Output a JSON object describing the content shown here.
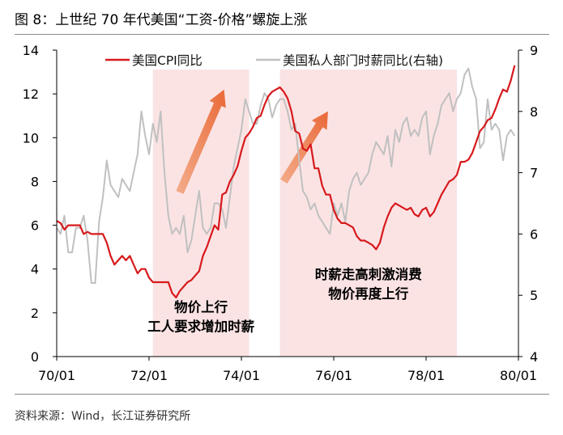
{
  "figure": {
    "title": "图 8：上世纪 70 年代美国“工资-价格”螺旋上涨",
    "source": "资料来源：Wind，长江证券研究所"
  },
  "chart_data": {
    "type": "line",
    "title": "上世纪 70 年代美国“工资-价格”螺旋上涨",
    "x_ticks": [
      "70/01",
      "72/01",
      "74/01",
      "76/01",
      "78/01",
      "80/01"
    ],
    "x_range_months": [
      0,
      120
    ],
    "y_left": {
      "label": "美国CPI同比",
      "range": [
        0,
        14
      ],
      "ticks": [
        0,
        2,
        4,
        6,
        8,
        10,
        12,
        14
      ]
    },
    "y_right": {
      "label": "美国私人部门时薪同比(右轴)",
      "range": [
        4,
        9
      ],
      "ticks": [
        4,
        5,
        6,
        7,
        8,
        9
      ]
    },
    "legend_position": "top",
    "series": [
      {
        "name": "美国CPI同比",
        "axis": "left",
        "color": "#d7191c",
        "points": [
          [
            0,
            6.2
          ],
          [
            1,
            6.1
          ],
          [
            2,
            5.8
          ],
          [
            3,
            6.0
          ],
          [
            4,
            6.0
          ],
          [
            5,
            6.0
          ],
          [
            6,
            6.0
          ],
          [
            7,
            5.6
          ],
          [
            8,
            5.7
          ],
          [
            9,
            5.6
          ],
          [
            10,
            5.6
          ],
          [
            11,
            5.6
          ],
          [
            12,
            5.6
          ],
          [
            13,
            5.2
          ],
          [
            14,
            4.6
          ],
          [
            15,
            4.2
          ],
          [
            16,
            4.4
          ],
          [
            17,
            4.6
          ],
          [
            18,
            4.4
          ],
          [
            19,
            4.6
          ],
          [
            20,
            4.2
          ],
          [
            21,
            3.8
          ],
          [
            22,
            4.0
          ],
          [
            23,
            4.0
          ],
          [
            24,
            3.6
          ],
          [
            25,
            3.4
          ],
          [
            26,
            3.4
          ],
          [
            27,
            3.4
          ],
          [
            28,
            3.4
          ],
          [
            29,
            3.4
          ],
          [
            30,
            2.9
          ],
          [
            31,
            2.7
          ],
          [
            32,
            3.0
          ],
          [
            33,
            3.2
          ],
          [
            34,
            3.4
          ],
          [
            35,
            3.5
          ],
          [
            36,
            3.7
          ],
          [
            37,
            3.9
          ],
          [
            38,
            4.6
          ],
          [
            39,
            5.0
          ],
          [
            40,
            5.5
          ],
          [
            41,
            6.0
          ],
          [
            42,
            5.8
          ],
          [
            43,
            7.4
          ],
          [
            44,
            7.5
          ],
          [
            45,
            8.0
          ],
          [
            46,
            8.3
          ],
          [
            47,
            8.7
          ],
          [
            48,
            9.4
          ],
          [
            49,
            10.0
          ],
          [
            50,
            10.2
          ],
          [
            51,
            10.5
          ],
          [
            52,
            10.9
          ],
          [
            53,
            11.0
          ],
          [
            54,
            11.5
          ],
          [
            55,
            11.9
          ],
          [
            56,
            12.1
          ],
          [
            57,
            12.2
          ],
          [
            58,
            12.3
          ],
          [
            59,
            12.1
          ],
          [
            60,
            11.8
          ],
          [
            61,
            11.2
          ],
          [
            62,
            10.3
          ],
          [
            63,
            10.2
          ],
          [
            64,
            9.5
          ],
          [
            65,
            9.4
          ],
          [
            66,
            9.7
          ],
          [
            67,
            8.6
          ],
          [
            68,
            8.6
          ],
          [
            69,
            7.8
          ],
          [
            70,
            7.4
          ],
          [
            71,
            7.4
          ],
          [
            72,
            6.7
          ],
          [
            73,
            6.3
          ],
          [
            74,
            6.1
          ],
          [
            75,
            6.1
          ],
          [
            76,
            6.0
          ],
          [
            77,
            5.9
          ],
          [
            78,
            5.5
          ],
          [
            79,
            5.3
          ],
          [
            80,
            5.3
          ],
          [
            81,
            5.2
          ],
          [
            82,
            5.1
          ],
          [
            83,
            4.9
          ],
          [
            84,
            5.2
          ],
          [
            85,
            5.9
          ],
          [
            86,
            6.4
          ],
          [
            87,
            6.8
          ],
          [
            88,
            7.0
          ],
          [
            89,
            6.9
          ],
          [
            90,
            6.8
          ],
          [
            91,
            6.7
          ],
          [
            92,
            6.8
          ],
          [
            93,
            6.5
          ],
          [
            94,
            6.4
          ],
          [
            95,
            6.7
          ],
          [
            96,
            6.8
          ],
          [
            97,
            6.4
          ],
          [
            98,
            6.6
          ],
          [
            99,
            7.0
          ],
          [
            100,
            7.4
          ],
          [
            101,
            7.7
          ],
          [
            102,
            8.0
          ],
          [
            103,
            8.1
          ],
          [
            104,
            8.3
          ],
          [
            105,
            8.9
          ],
          [
            106,
            8.9
          ],
          [
            107,
            9.0
          ],
          [
            108,
            9.3
          ],
          [
            109,
            9.8
          ],
          [
            110,
            10.3
          ],
          [
            111,
            10.5
          ],
          [
            112,
            10.8
          ],
          [
            113,
            10.9
          ],
          [
            114,
            11.3
          ],
          [
            115,
            11.8
          ],
          [
            116,
            12.2
          ],
          [
            117,
            12.1
          ],
          [
            118,
            12.6
          ],
          [
            119,
            13.3
          ]
        ]
      },
      {
        "name": "美国私人部门时薪同比(右轴)",
        "axis": "right",
        "color": "#c0c0c0",
        "points": [
          [
            0,
            6.1
          ],
          [
            1,
            6.0
          ],
          [
            2,
            6.3
          ],
          [
            3,
            5.7
          ],
          [
            4,
            5.7
          ],
          [
            5,
            6.1
          ],
          [
            6,
            6.1
          ],
          [
            7,
            6.3
          ],
          [
            8,
            5.9
          ],
          [
            9,
            5.2
          ],
          [
            10,
            5.2
          ],
          [
            11,
            6.2
          ],
          [
            12,
            6.6
          ],
          [
            13,
            7.2
          ],
          [
            14,
            6.8
          ],
          [
            15,
            6.7
          ],
          [
            16,
            6.6
          ],
          [
            17,
            6.9
          ],
          [
            18,
            6.8
          ],
          [
            19,
            6.7
          ],
          [
            20,
            7.0
          ],
          [
            21,
            7.3
          ],
          [
            22,
            8.0
          ],
          [
            23,
            7.6
          ],
          [
            24,
            7.3
          ],
          [
            25,
            7.8
          ],
          [
            26,
            7.5
          ],
          [
            27,
            8.0
          ],
          [
            28,
            7.0
          ],
          [
            29,
            6.3
          ],
          [
            30,
            6.0
          ],
          [
            31,
            6.1
          ],
          [
            32,
            6.0
          ],
          [
            33,
            6.3
          ],
          [
            34,
            5.7
          ],
          [
            35,
            5.9
          ],
          [
            36,
            6.3
          ],
          [
            37,
            6.7
          ],
          [
            38,
            6.1
          ],
          [
            39,
            6.0
          ],
          [
            40,
            6.1
          ],
          [
            41,
            6.5
          ],
          [
            42,
            6.5
          ],
          [
            43,
            6.4
          ],
          [
            44,
            6.1
          ],
          [
            45,
            6.6
          ],
          [
            46,
            7.1
          ],
          [
            47,
            7.4
          ],
          [
            48,
            7.7
          ],
          [
            49,
            8.2
          ],
          [
            50,
            8.0
          ],
          [
            51,
            7.8
          ],
          [
            52,
            7.8
          ],
          [
            53,
            8.1
          ],
          [
            54,
            8.3
          ],
          [
            55,
            8.2
          ],
          [
            56,
            7.9
          ],
          [
            57,
            8.1
          ],
          [
            58,
            8.2
          ],
          [
            59,
            8.2
          ],
          [
            60,
            8.0
          ],
          [
            61,
            7.7
          ],
          [
            62,
            7.8
          ],
          [
            63,
            7.2
          ],
          [
            64,
            6.7
          ],
          [
            65,
            6.6
          ],
          [
            66,
            6.4
          ],
          [
            67,
            6.5
          ],
          [
            68,
            6.3
          ],
          [
            69,
            6.2
          ],
          [
            70,
            6.1
          ],
          [
            71,
            6.0
          ],
          [
            72,
            6.5
          ],
          [
            73,
            6.3
          ],
          [
            74,
            6.5
          ],
          [
            75,
            6.2
          ],
          [
            76,
            6.7
          ],
          [
            77,
            6.9
          ],
          [
            78,
            7.0
          ],
          [
            79,
            6.8
          ],
          [
            80,
            6.9
          ],
          [
            81,
            7.0
          ],
          [
            82,
            7.3
          ],
          [
            83,
            7.5
          ],
          [
            84,
            7.4
          ],
          [
            85,
            7.3
          ],
          [
            86,
            7.6
          ],
          [
            87,
            7.1
          ],
          [
            88,
            7.7
          ],
          [
            89,
            7.5
          ],
          [
            90,
            7.8
          ],
          [
            91,
            7.9
          ],
          [
            92,
            7.6
          ],
          [
            93,
            7.7
          ],
          [
            94,
            7.6
          ],
          [
            95,
            7.9
          ],
          [
            96,
            8.0
          ],
          [
            97,
            7.3
          ],
          [
            98,
            7.6
          ],
          [
            99,
            7.8
          ],
          [
            100,
            8.1
          ],
          [
            101,
            8.2
          ],
          [
            102,
            8.3
          ],
          [
            103,
            8.0
          ],
          [
            104,
            8.2
          ],
          [
            105,
            8.3
          ],
          [
            106,
            8.6
          ],
          [
            107,
            8.7
          ],
          [
            108,
            8.4
          ],
          [
            109,
            8.2
          ],
          [
            110,
            7.4
          ],
          [
            111,
            7.5
          ],
          [
            112,
            8.2
          ],
          [
            113,
            7.7
          ],
          [
            114,
            7.8
          ],
          [
            115,
            7.7
          ],
          [
            116,
            7.2
          ],
          [
            117,
            7.6
          ],
          [
            118,
            7.7
          ],
          [
            119,
            7.6
          ]
        ]
      }
    ],
    "shaded_periods": [
      {
        "from": 25,
        "to": 50
      },
      {
        "from": 58,
        "to": 104
      }
    ],
    "annotations": [
      {
        "lines": [
          "物价上行",
          "工人要求增加时薪"
        ],
        "x": 37.5,
        "y": 1.6
      },
      {
        "lines": [
          "时薪走高刺激消费",
          "物价再度上行"
        ],
        "x": 81,
        "y": 3.1
      }
    ],
    "trend_arrows": [
      {
        "from": [
          32,
          7.5
        ],
        "to": [
          43.5,
          12.2
        ]
      },
      {
        "from": [
          59,
          8.0
        ],
        "to": [
          70.5,
          11.2
        ]
      }
    ]
  }
}
